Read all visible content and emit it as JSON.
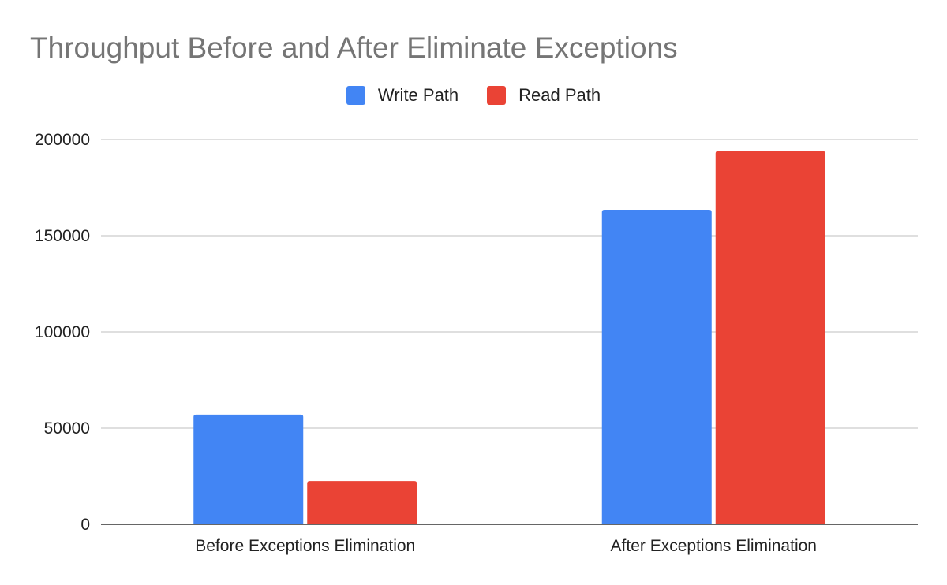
{
  "chart_data": {
    "type": "bar",
    "title": "Throughput Before and After Eliminate Exceptions",
    "categories": [
      "Before Exceptions Elimination",
      "After Exceptions Elimination"
    ],
    "series": [
      {
        "name": "Write Path",
        "color": "#4285f4",
        "values": [
          57000,
          163500
        ]
      },
      {
        "name": "Read Path",
        "color": "#ea4335",
        "values": [
          22500,
          194000
        ]
      }
    ],
    "yticks": [
      0,
      50000,
      100000,
      150000,
      200000
    ],
    "ylim": [
      0,
      200000
    ],
    "grid": true,
    "legend_position": "top"
  }
}
